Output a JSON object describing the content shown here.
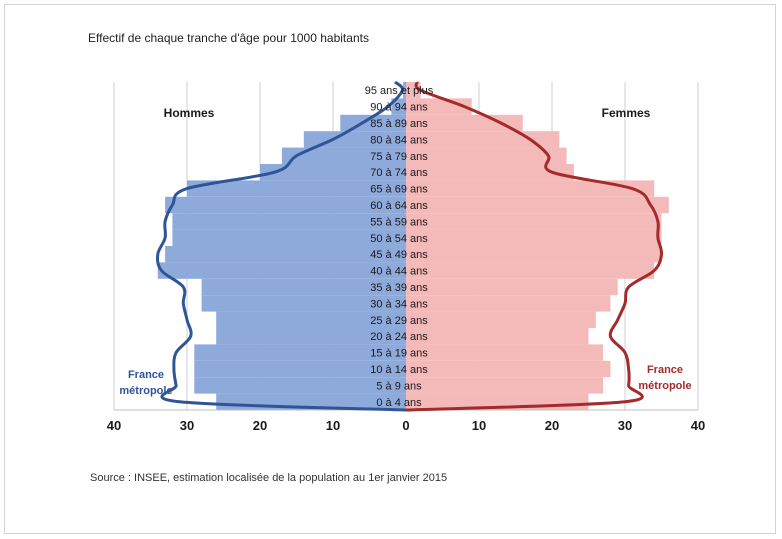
{
  "chart_data": {
    "type": "bar",
    "subtype": "population-pyramid",
    "title": "Effectif de chaque tranche d'âge pour 1000 habitants",
    "source": "Source : INSEE, estimation localisée de la population au 1er janvier 2015",
    "categories": [
      "0 à 4 ans",
      "5 à 9 ans",
      "10 à 14 ans",
      "15 à 19 ans",
      "20 à 24 ans",
      "25 à 29 ans",
      "30 à 34 ans",
      "35 à 39 ans",
      "40 à 44 ans",
      "45 à 49 ans",
      "50 à 54 ans",
      "55 à 59 ans",
      "60 à 64 ans",
      "65 à 69 ans",
      "70 à 74 ans",
      "75 à 79 ans",
      "80 à 84 ans",
      "85 à 89 ans",
      "90 à 94 ans",
      "95 ans et plus"
    ],
    "x_ticks": [
      "40",
      "30",
      "20",
      "10",
      "0",
      "10",
      "20",
      "30",
      "40"
    ],
    "xlim": [
      -40,
      40
    ],
    "grid": true,
    "series": [
      {
        "name": "Hommes",
        "side": "left",
        "kind": "bar",
        "color": "#8eaadb",
        "values": [
          26,
          29,
          29,
          29,
          26,
          26,
          28,
          28,
          34,
          33,
          32,
          32,
          33,
          30,
          20,
          17,
          14,
          9,
          2,
          0.4
        ]
      },
      {
        "name": "Femmes",
        "side": "right",
        "kind": "bar",
        "color": "#f4b9b9",
        "values": [
          25,
          27,
          28,
          27,
          25,
          26,
          28,
          29,
          34,
          35,
          35,
          35,
          36,
          34,
          23,
          22,
          21,
          16,
          9,
          2
        ]
      },
      {
        "name": "France métropole",
        "side": "left",
        "kind": "line",
        "color": "#2f5597",
        "values": [
          31,
          31.5,
          31.8,
          31.5,
          29.5,
          30,
          30.5,
          30.5,
          33.5,
          34,
          33,
          33,
          32,
          30,
          18,
          15,
          10,
          6,
          2.5,
          0.5
        ]
      },
      {
        "name": "France métropole",
        "side": "right",
        "kind": "line",
        "color": "#a32b2b",
        "values": [
          30,
          30.5,
          30.5,
          30,
          28,
          29,
          30,
          30.5,
          34,
          35,
          34.5,
          34.5,
          33.5,
          31,
          20,
          19.5,
          17,
          13,
          8,
          2
        ]
      }
    ],
    "side_labels": {
      "left": "Hommes",
      "right": "Femmes"
    },
    "line_labels": {
      "left": [
        "France",
        "métropole"
      ],
      "right": [
        "France",
        "métropole"
      ]
    },
    "colors": {
      "male_bar": "#8eaadb",
      "female_bar": "#f4b9b9",
      "male_line": "#2f5597",
      "female_line": "#a32b2b",
      "male_label": "#2f5597",
      "female_label": "#a32b2b",
      "grid": "#cfcfcf"
    }
  }
}
